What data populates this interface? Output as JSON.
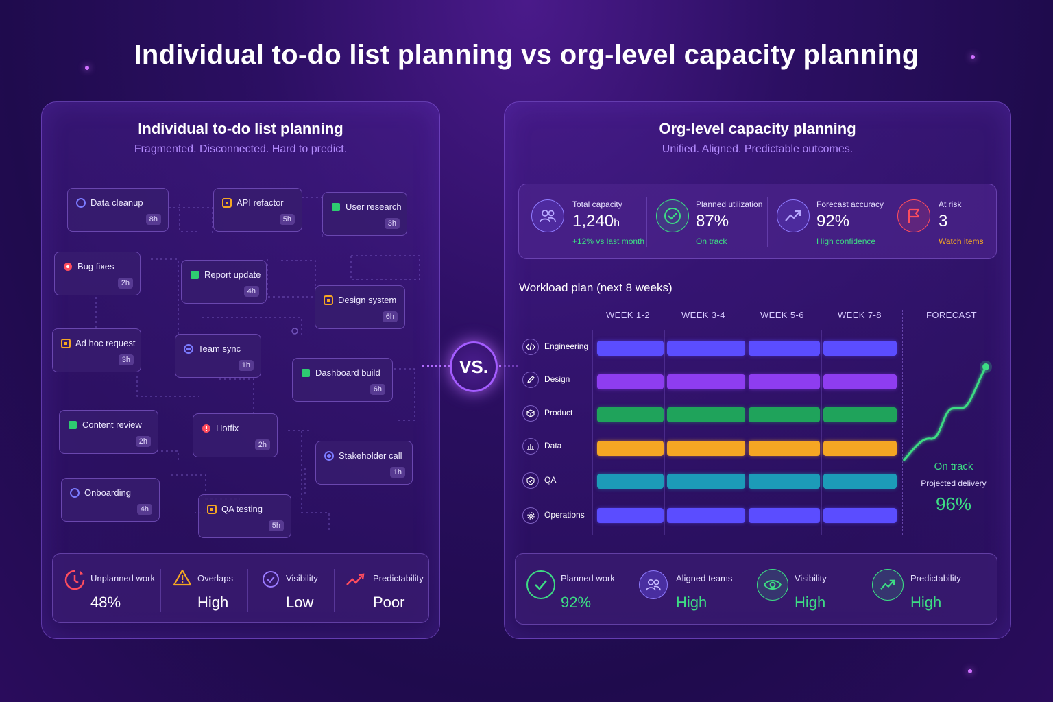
{
  "title": "Individual to-do list planning vs org-level capacity planning",
  "left_panel": {
    "title": "Individual to-do list planning",
    "subtitle": "Fragmented. Disconnected. Hard to predict.",
    "tasks": [
      {
        "name": "Data cleanup",
        "hours": "8h",
        "icon": "circle-outline-icon",
        "color": "#7b7bff"
      },
      {
        "name": "API refactor",
        "hours": "5h",
        "icon": "square-outline-icon",
        "color": "#f5a623"
      },
      {
        "name": "User research",
        "hours": "3h",
        "icon": "square-filled-icon",
        "color": "#2ecc71"
      },
      {
        "name": "Bug fixes",
        "hours": "2h",
        "icon": "red-dot-icon",
        "color": "#ff4d5e"
      },
      {
        "name": "Report update",
        "hours": "4h",
        "icon": "square-filled-icon",
        "color": "#2ecc71"
      },
      {
        "name": "Design system",
        "hours": "6h",
        "icon": "square-outline-icon",
        "color": "#f5a623"
      },
      {
        "name": "Ad hoc request",
        "hours": "3h",
        "icon": "square-outline-icon",
        "color": "#f5a623"
      },
      {
        "name": "Team sync",
        "hours": "1h",
        "icon": "minus-circle-icon",
        "color": "#7b7bff"
      },
      {
        "name": "Dashboard build",
        "hours": "6h",
        "icon": "square-filled-icon",
        "color": "#2ecc71"
      },
      {
        "name": "Content review",
        "hours": "2h",
        "icon": "square-filled-icon",
        "color": "#2ecc71"
      },
      {
        "name": "Hotfix",
        "hours": "2h",
        "icon": "alert-circle-icon",
        "color": "#ff4d5e"
      },
      {
        "name": "Stakeholder call",
        "hours": "1h",
        "icon": "dot-circle-icon",
        "color": "#7b7bff"
      },
      {
        "name": "Onboarding",
        "hours": "4h",
        "icon": "circle-outline-icon",
        "color": "#7b7bff"
      },
      {
        "name": "QA testing",
        "hours": "5h",
        "icon": "square-outline-icon",
        "color": "#f5a623"
      }
    ],
    "stats": [
      {
        "label": "Unplanned work",
        "value": "48%",
        "icon": "unplanned-clock-icon"
      },
      {
        "label": "Overlaps",
        "value": "High",
        "icon": "warning-triangle-icon"
      },
      {
        "label": "Visibility",
        "value": "Low",
        "icon": "check-circle-icon"
      },
      {
        "label": "Predictability",
        "value": "Poor",
        "icon": "trend-line-icon"
      }
    ]
  },
  "vs_label": "VS.",
  "right_panel": {
    "title": "Org-level capacity planning",
    "subtitle": "Unified. Aligned. Predictable outcomes.",
    "kpis": [
      {
        "label": "Total capacity",
        "value": "1,240",
        "unit": "h",
        "note": "+12% vs last month",
        "note_color": "#3ddc84",
        "icon": "people-icon",
        "icon_color": "#8f7bff"
      },
      {
        "label": "Planned utilization",
        "value": "87%",
        "unit": "",
        "note": "On track",
        "note_color": "#3ddc84",
        "icon": "check-circle-icon",
        "icon_color": "#3ddc84"
      },
      {
        "label": "Forecast accuracy",
        "value": "92%",
        "unit": "",
        "note": "High confidence",
        "note_color": "#3ddc84",
        "icon": "trend-up-icon",
        "icon_color": "#8f7bff"
      },
      {
        "label": "At risk",
        "value": "3",
        "unit": "",
        "note": "Watch items",
        "note_color": "#f5a623",
        "icon": "flag-icon",
        "icon_color": "#ff4d5e"
      }
    ],
    "workload": {
      "title": "Workload plan (next 8 weeks)",
      "columns": [
        "WEEK 1-2",
        "WEEK 3-4",
        "WEEK 5-6",
        "WEEK 7-8",
        "FORECAST"
      ],
      "teams": [
        {
          "name": "Engineering",
          "icon": "code-icon",
          "color": "#5b4dff"
        },
        {
          "name": "Design",
          "icon": "pen-icon",
          "color": "#8e3df0"
        },
        {
          "name": "Product",
          "icon": "cube-icon",
          "color": "#1fa35b"
        },
        {
          "name": "Data",
          "icon": "bar-chart-icon",
          "color": "#f5a623"
        },
        {
          "name": "QA",
          "icon": "shield-check-icon",
          "color": "#1c9bb8"
        },
        {
          "name": "Operations",
          "icon": "gear-icon",
          "color": "#5b4dff"
        }
      ],
      "forecast": {
        "status": "On track",
        "label": "Projected delivery",
        "value": "96%",
        "color": "#3ddc84"
      }
    },
    "stats": [
      {
        "label": "Planned work",
        "value": "92%",
        "icon": "check-circle-icon"
      },
      {
        "label": "Aligned teams",
        "value": "High",
        "icon": "people-icon"
      },
      {
        "label": "Visibility",
        "value": "High",
        "icon": "eye-icon"
      },
      {
        "label": "Predictability",
        "value": "High",
        "icon": "trend-up-icon"
      }
    ]
  }
}
